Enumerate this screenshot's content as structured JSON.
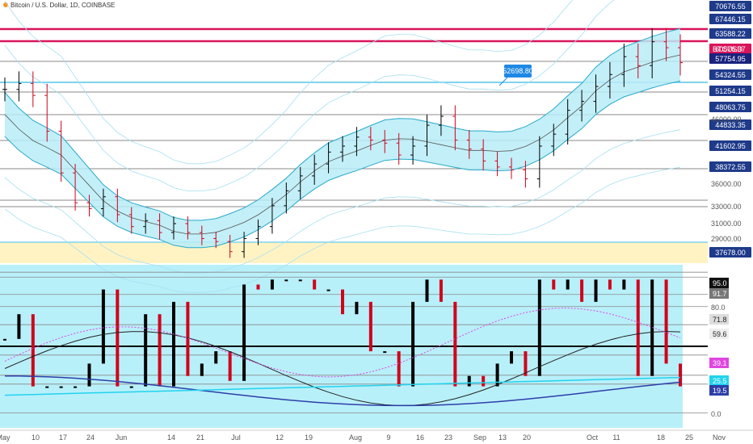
{
  "header": {
    "symbol_title": "Bitcoin / U.S. Dollar, 1D, COINBASE"
  },
  "colors": {
    "candle_up": "#000000",
    "candle_down": "#d0021b",
    "channel_fill": "#b9ecf7",
    "channel_line": "#29a9c9",
    "outer_band": "#a8dff0",
    "resistance_red": "#d9145b",
    "yellow_zone": "#fff3c4",
    "osc_bg": "#b8f0fa",
    "osc_blue": "#2e3ea8",
    "osc_cyan": "#22d3ee",
    "osc_magenta": "#e046e0"
  },
  "chart_data": [
    {
      "type": "candlestick",
      "title": "Bitcoin / U.S. Dollar, 1D, COINBASE",
      "xlabel": "",
      "ylabel": "",
      "x_ticks": [
        "May",
        "10",
        "17",
        "24",
        "Jun",
        "14",
        "21",
        "Jul",
        "12",
        "19",
        "Aug",
        "9",
        "16",
        "23",
        "Sep",
        "13",
        "20",
        "Oct",
        "11",
        "18",
        "25",
        "Nov"
      ],
      "y_ticks": [
        29000.0,
        31000.0,
        33000.0,
        36000.0,
        46000.0
      ],
      "price_labels": [
        "70676.55",
        "67446.15",
        "63588.22",
        "60576.37",
        "57754.95",
        "54324.55",
        "51254.15",
        "48063.75",
        "44833.35",
        "41602.95",
        "38372.55",
        "37678.00"
      ],
      "current_price_label": "BTCUSD",
      "callout": "52698.80",
      "approx_close": [
        57000,
        58000,
        56000,
        50000,
        43000,
        38000,
        37000,
        39000,
        36000,
        34000,
        35000,
        33000,
        34500,
        33000,
        32000,
        31500,
        29800,
        32000,
        34000,
        37500,
        40000,
        42500,
        44500,
        46500,
        47500,
        49000,
        48500,
        48000,
        46000,
        47500,
        51000,
        52500,
        48500,
        47000,
        45000,
        44000,
        43500,
        42000,
        47500,
        49500,
        53500,
        55000,
        57500,
        59500,
        62500,
        61000,
        65000,
        64000,
        61500
      ],
      "ylim": [
        28000,
        72000
      ]
    },
    {
      "type": "line",
      "title": "",
      "y_ticks": [
        0.0,
        80.0
      ],
      "value_labels": [
        "95.0",
        "91.7",
        "71.8",
        "59.6",
        "39.1",
        "25.5",
        "19.5"
      ],
      "ylim": [
        -10,
        100
      ]
    }
  ]
}
